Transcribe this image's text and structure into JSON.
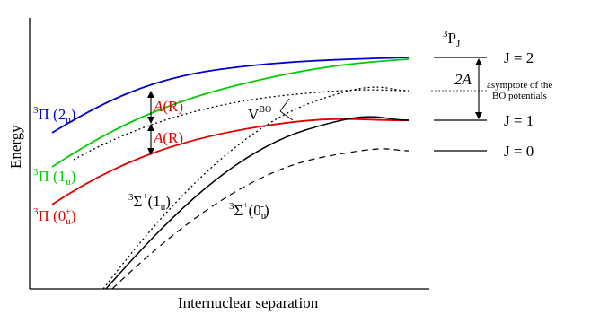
{
  "axes": {
    "ylabel": "Energy",
    "xlabel": "Internuclear separation"
  },
  "curves": [
    {
      "name": "3Pi(2u)",
      "style": "solid",
      "color": "#0000cc"
    },
    {
      "name": "3Pi(1u)",
      "style": "solid",
      "color": "#00cc00"
    },
    {
      "name": "3Pi(0u+)",
      "style": "solid",
      "color": "#e00000"
    },
    {
      "name": "3Sigma+(1u)",
      "style": "solid",
      "color": "#000000"
    },
    {
      "name": "3Sigma+(0u-)",
      "style": "dashed",
      "color": "#000000"
    },
    {
      "name": "BO potentials",
      "style": "dotted",
      "color": "#000000"
    }
  ],
  "labels": {
    "pi2u_main": "Π",
    "pi2u_paren_open": " (2",
    "pi2u_sub": "u",
    "pi2u_paren_close": ")",
    "pi1u_main": "Π",
    "pi1u_paren_open": " (1",
    "pi1u_sub": "u",
    "pi1u_paren_close": ")",
    "pi0u_main": "Π",
    "pi0u_paren_open": " (0",
    "pi0u_sub": "u",
    "pi0u_sup": "+",
    "pi0u_paren_close": ")",
    "sigma1u_main": "Σ",
    "sigma1u_sup": "+",
    "sigma1u_paren": "(1",
    "sigma1u_sub": "u",
    "sigma1u_close": ")",
    "sigma0u_main": "Σ",
    "sigma0u_sup": "+",
    "sigma0u_paren": "(0",
    "sigma0u_sub": "u",
    "sigma0u_sup2": "-",
    "sigma0u_close": ")",
    "triplet": "3",
    "vbo_main": "V",
    "vbo_sup": "BO",
    "ar_upper": "A",
    "ar_upper_arg": "(R)",
    "ar_lower": "A",
    "ar_lower_arg": "(R)",
    "two_a": "2",
    "two_a_italic": "A",
    "asymptote_line1": "asymptote of the",
    "asymptote_line2": "BO potentials",
    "atomic_state_sup": "3",
    "atomic_state_main": "P",
    "atomic_state_sub": "J"
  },
  "levels": [
    {
      "label": "J = 2"
    },
    {
      "label": "J = 1"
    },
    {
      "label": "J = 0"
    }
  ],
  "colors": {
    "blue": "#0000cc",
    "green": "#00cc00",
    "red": "#e00000",
    "black": "#000000",
    "gray": "#777777"
  }
}
